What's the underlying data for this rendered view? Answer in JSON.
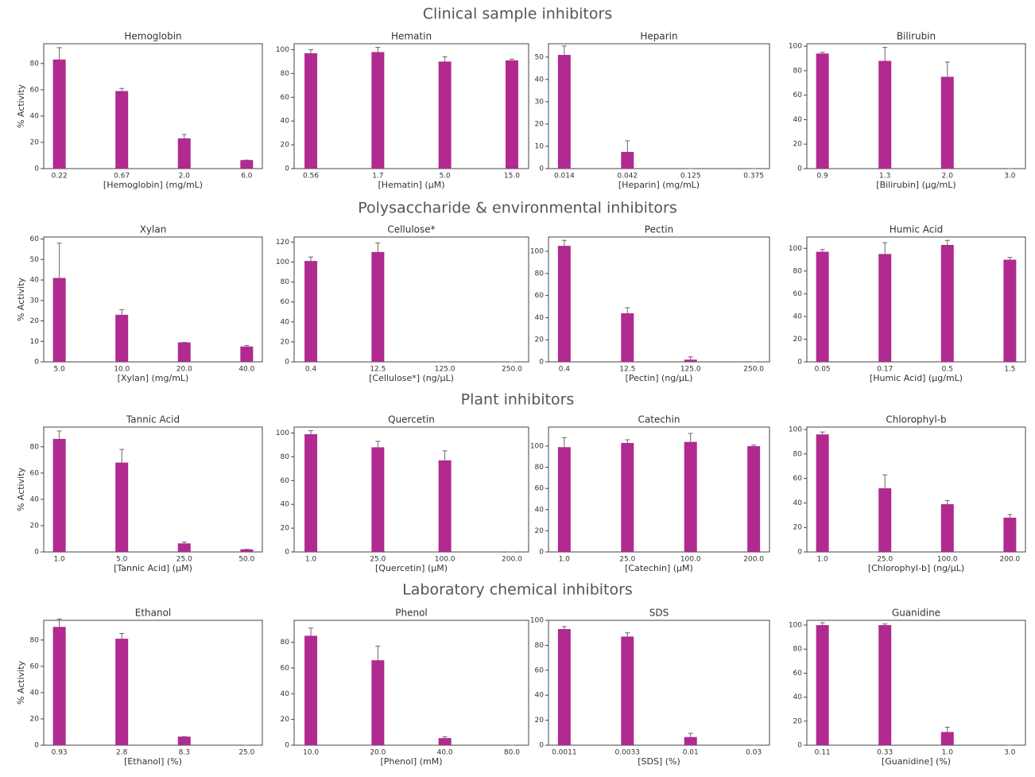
{
  "sections": [
    "Clinical sample inhibitors",
    "Polysaccharide & environmental inhibitors",
    "Plant inhibitors",
    "Laboratory chemical inhibitors"
  ],
  "chart_data": [
    {
      "type": "bar",
      "title": "Hemoglobin",
      "x_label": "[Hemoglobin] (mg/mL)",
      "y_label": "% Activity",
      "categories": [
        "0.22",
        "0.67",
        "2.0",
        "6.0"
      ],
      "values": [
        83,
        59,
        23,
        6.5
      ],
      "errors": [
        9,
        2,
        3,
        0
      ],
      "ylim": [
        0,
        95
      ],
      "yticks": [
        0,
        20,
        40,
        60,
        80
      ],
      "color": "#b02a90"
    },
    {
      "type": "bar",
      "title": "Hematin",
      "x_label": "[Hematin] (µM)",
      "categories": [
        "0.56",
        "1.7",
        "5.0",
        "15.0"
      ],
      "values": [
        97,
        98,
        90,
        91
      ],
      "errors": [
        3,
        4,
        4,
        1
      ],
      "ylim": [
        0,
        105
      ],
      "yticks": [
        0,
        20,
        40,
        60,
        80,
        100
      ],
      "color": "#b02a90"
    },
    {
      "type": "bar",
      "title": "Heparin",
      "x_label": "[Heparin] (mg/mL)",
      "categories": [
        "0.014",
        "0.042",
        "0.125",
        "0.375"
      ],
      "values": [
        51,
        7.5,
        0,
        0
      ],
      "errors": [
        4,
        5,
        0,
        0
      ],
      "ylim": [
        0,
        56
      ],
      "yticks": [
        0,
        10,
        20,
        30,
        40,
        50
      ],
      "color": "#b02a90"
    },
    {
      "type": "bar",
      "title": "Bilirubin",
      "x_label": "[Bilirubin] (µg/mL)",
      "categories": [
        "0.9",
        "1.3",
        "2.0",
        "3.0"
      ],
      "values": [
        94,
        88,
        75,
        0
      ],
      "errors": [
        1,
        11,
        12,
        0
      ],
      "ylim": [
        0,
        102
      ],
      "yticks": [
        0,
        20,
        40,
        60,
        80,
        100
      ],
      "color": "#b02a90"
    },
    {
      "type": "bar",
      "title": "Xylan",
      "x_label": "[Xylan] (mg/mL)",
      "y_label": "% Activity",
      "categories": [
        "5.0",
        "10.0",
        "20.0",
        "40.0"
      ],
      "values": [
        41,
        23,
        9.5,
        7.5
      ],
      "errors": [
        17,
        2.5,
        0,
        0.5
      ],
      "ylim": [
        0,
        61
      ],
      "yticks": [
        0,
        10,
        20,
        30,
        40,
        50,
        60
      ],
      "color": "#b02a90"
    },
    {
      "type": "bar",
      "title": "Cellulose*",
      "x_label": "[Cellulose*] (ng/µL)",
      "categories": [
        "0.4",
        "12.5",
        "125.0",
        "250.0"
      ],
      "values": [
        101,
        110,
        0,
        0
      ],
      "errors": [
        4,
        9,
        0,
        0
      ],
      "ylim": [
        0,
        125
      ],
      "yticks": [
        0,
        20,
        40,
        60,
        80,
        100,
        120
      ],
      "color": "#b02a90"
    },
    {
      "type": "bar",
      "title": "Pectin",
      "x_label": "[Pectin] (ng/µL)",
      "categories": [
        "0.4",
        "12.5",
        "125.0",
        "250.0"
      ],
      "values": [
        105,
        44,
        2,
        0
      ],
      "errors": [
        5,
        5,
        2.5,
        0
      ],
      "ylim": [
        0,
        113
      ],
      "yticks": [
        0,
        20,
        40,
        60,
        80,
        100
      ],
      "color": "#b02a90"
    },
    {
      "type": "bar",
      "title": "Humic Acid",
      "x_label": "[Humic Acid] (µg/mL)",
      "categories": [
        "0.05",
        "0.17",
        "0.5",
        "1.5"
      ],
      "values": [
        97,
        95,
        103,
        90
      ],
      "errors": [
        2,
        10,
        4,
        2
      ],
      "ylim": [
        0,
        110
      ],
      "yticks": [
        0,
        20,
        40,
        60,
        80,
        100
      ],
      "color": "#b02a90"
    },
    {
      "type": "bar",
      "title": "Tannic Acid",
      "x_label": "[Tannic Acid] (µM)",
      "y_label": "% Activity",
      "categories": [
        "1.0",
        "5.0",
        "25.0",
        "50.0"
      ],
      "values": [
        86,
        68,
        6.5,
        2
      ],
      "errors": [
        6,
        10,
        1,
        0
      ],
      "ylim": [
        0,
        95
      ],
      "yticks": [
        0,
        20,
        40,
        60,
        80
      ],
      "color": "#b02a90"
    },
    {
      "type": "bar",
      "title": "Quercetin",
      "x_label": "[Quercetin] (µM)",
      "categories": [
        "1.0",
        "25.0",
        "100.0",
        "200.0"
      ],
      "values": [
        99,
        88,
        77,
        0
      ],
      "errors": [
        3,
        5,
        8,
        0
      ],
      "ylim": [
        0,
        105
      ],
      "yticks": [
        0,
        20,
        40,
        60,
        80,
        100
      ],
      "color": "#b02a90"
    },
    {
      "type": "bar",
      "title": "Catechin",
      "x_label": "[Catechin] (µM)",
      "categories": [
        "1.0",
        "25.0",
        "100.0",
        "200.0"
      ],
      "values": [
        99,
        103,
        104,
        100
      ],
      "errors": [
        9,
        3,
        8,
        1
      ],
      "ylim": [
        0,
        118
      ],
      "yticks": [
        0,
        20,
        40,
        60,
        80,
        100
      ],
      "color": "#b02a90"
    },
    {
      "type": "bar",
      "title": "Chlorophyl-b",
      "x_label": "[Chlorophyl-b] (ng/µL)",
      "categories": [
        "1.0",
        "25.0",
        "100.0",
        "200.0"
      ],
      "values": [
        96,
        52,
        39,
        28
      ],
      "errors": [
        2,
        11,
        3,
        2.5
      ],
      "ylim": [
        0,
        102
      ],
      "yticks": [
        0,
        20,
        40,
        60,
        80,
        100
      ],
      "color": "#b02a90"
    },
    {
      "type": "bar",
      "title": "Ethanol",
      "x_label": "[Ethanol] (%)",
      "y_label": "% Activity",
      "categories": [
        "0.93",
        "2.8",
        "8.3",
        "25.0"
      ],
      "values": [
        90,
        81,
        6.5,
        0
      ],
      "errors": [
        6,
        4,
        0,
        0
      ],
      "ylim": [
        0,
        95
      ],
      "yticks": [
        0,
        20,
        40,
        60,
        80
      ],
      "color": "#b02a90"
    },
    {
      "type": "bar",
      "title": "Phenol",
      "x_label": "[Phenol] (mM)",
      "categories": [
        "10.0",
        "20.0",
        "40.0",
        "80.0"
      ],
      "values": [
        85,
        66,
        5.5,
        0
      ],
      "errors": [
        6,
        11,
        1,
        0
      ],
      "ylim": [
        0,
        97
      ],
      "yticks": [
        0,
        20,
        40,
        60,
        80
      ],
      "color": "#b02a90"
    },
    {
      "type": "bar",
      "title": "SDS",
      "x_label": "[SDS] (%)",
      "categories": [
        "0.0011",
        "0.0033",
        "0.01",
        "0.03"
      ],
      "values": [
        93,
        87,
        6.5,
        0
      ],
      "errors": [
        2,
        3,
        3,
        0
      ],
      "ylim": [
        0,
        100
      ],
      "yticks": [
        0,
        20,
        40,
        60,
        80,
        100
      ],
      "color": "#b02a90"
    },
    {
      "type": "bar",
      "title": "Guanidine",
      "x_label": "[Guanidine] (%)",
      "categories": [
        "0.11",
        "0.33",
        "1.0",
        "3.0"
      ],
      "values": [
        100,
        100,
        11,
        0
      ],
      "errors": [
        2,
        1,
        4,
        0
      ],
      "ylim": [
        0,
        104
      ],
      "yticks": [
        0,
        20,
        40,
        60,
        80,
        100
      ],
      "color": "#b02a90"
    }
  ]
}
